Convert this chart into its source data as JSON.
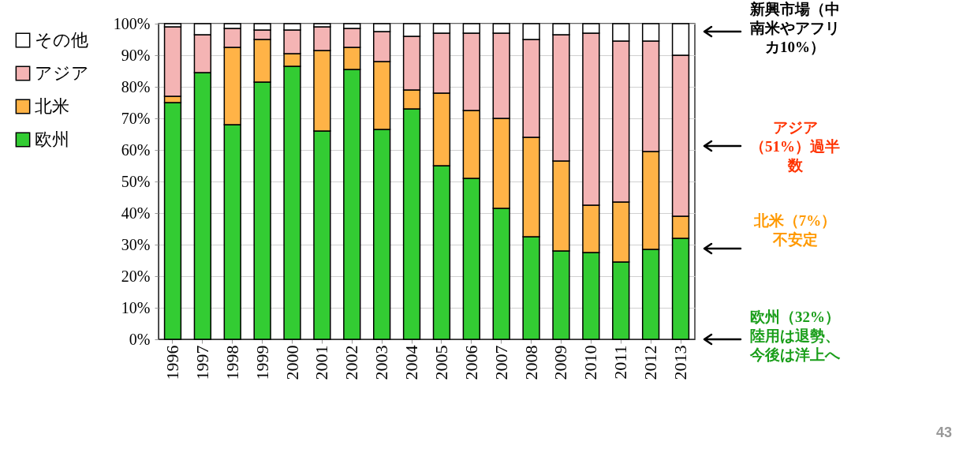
{
  "chart_data": {
    "type": "bar",
    "stacked": true,
    "categories": [
      "1996",
      "1997",
      "1998",
      "1999",
      "2000",
      "2001",
      "2002",
      "2003",
      "2004",
      "2005",
      "2006",
      "2007",
      "2008",
      "2009",
      "2010",
      "2011",
      "2012",
      "2013"
    ],
    "series": [
      {
        "name": "欧州",
        "color": "#33cc33",
        "values": [
          75,
          84.5,
          68,
          81.5,
          86.5,
          66,
          85.5,
          66.5,
          73,
          55,
          51,
          41.5,
          32.5,
          28,
          27.5,
          24.5,
          28.5,
          32
        ]
      },
      {
        "name": "北米",
        "color": "#ffb347",
        "values": [
          2,
          null,
          24.5,
          13.5,
          4,
          25.5,
          7,
          21.5,
          6,
          23,
          21.5,
          28.5,
          31.5,
          28.5,
          15,
          19,
          31,
          7
        ]
      },
      {
        "name": "アジア",
        "color": "#f4b4b4",
        "values": [
          22,
          12,
          6,
          3,
          7.5,
          7.5,
          6,
          9.5,
          17,
          19,
          24.5,
          27,
          31,
          40,
          54.5,
          51,
          35,
          51
        ]
      },
      {
        "name": "その他",
        "color": "#ffffff",
        "values": [
          1,
          3.5,
          1.5,
          2,
          2,
          1,
          1.5,
          2.5,
          4,
          3,
          3,
          3,
          5,
          3.5,
          3,
          5.5,
          5.5,
          10
        ]
      }
    ],
    "ylim": [
      0,
      100
    ],
    "yticks": [
      {
        "value": 0,
        "label": "0%"
      },
      {
        "value": 10,
        "label": "10%"
      },
      {
        "value": 20,
        "label": "20%"
      },
      {
        "value": 30,
        "label": "30%"
      },
      {
        "value": 40,
        "label": "40%"
      },
      {
        "value": 50,
        "label": "50%"
      },
      {
        "value": 60,
        "label": "60%"
      },
      {
        "value": 70,
        "label": "70%"
      },
      {
        "value": 80,
        "label": "80%"
      },
      {
        "value": 90,
        "label": "90%"
      },
      {
        "value": 100,
        "label": "100%"
      }
    ],
    "grid": "y",
    "legend": "left",
    "annotations": [
      "新興市場（中南米やアフリカ10%）",
      "アジア（51%）過半数",
      "北米（7%）不安定",
      "欧州（32%）陸用は退勢、今後は洋上へ",
      "43"
    ]
  }
}
